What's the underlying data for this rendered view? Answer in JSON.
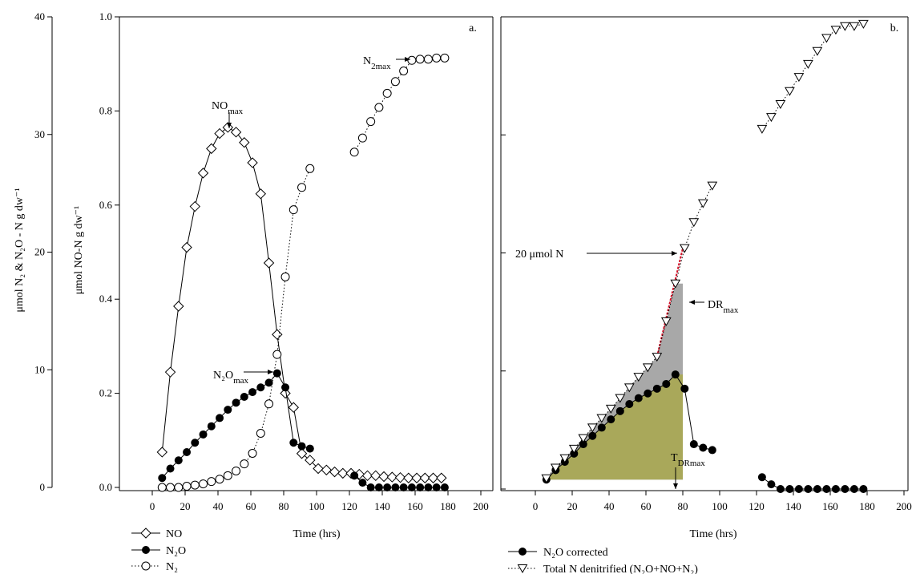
{
  "chart_data": [
    {
      "type": "line",
      "panel_label": "a.",
      "xlabel": "Time (hrs)",
      "xlim": [
        -10,
        200
      ],
      "x_ticks": [
        "0",
        "20",
        "40",
        "60",
        "80",
        "100",
        "120",
        "140",
        "160",
        "180",
        "200"
      ],
      "ylabel_left": "μmol N₂ & N₂O - N g dw⁻¹",
      "ylabel_right": "μmol NO-N g dw⁻¹",
      "ylim_left": [
        0,
        40
      ],
      "ylim_right": [
        0,
        1.0
      ],
      "y_ticks_left": [
        "0",
        "10",
        "20",
        "30",
        "40"
      ],
      "y_ticks_right": [
        "0.0",
        "0.2",
        "0.4",
        "0.6",
        "0.8",
        "1.0"
      ],
      "legend_position": "bottom-left",
      "series": [
        {
          "name": "NO",
          "axis": "right",
          "marker": "diamond",
          "line": "solid",
          "x": [
            6,
            11,
            16,
            21,
            26,
            31,
            36,
            41,
            46,
            51,
            56,
            61,
            66,
            71,
            76,
            81,
            86,
            91,
            96,
            101,
            106,
            111,
            116,
            121,
            126,
            131,
            136,
            141,
            146,
            151,
            156,
            161,
            166,
            171,
            176
          ],
          "y": [
            0.075,
            0.245,
            0.385,
            0.51,
            0.597,
            0.668,
            0.72,
            0.752,
            0.765,
            0.755,
            0.733,
            0.69,
            0.624,
            0.477,
            0.325,
            0.2,
            0.17,
            0.072,
            0.058,
            0.04,
            0.037,
            0.033,
            0.03,
            0.03,
            0.028,
            0.025,
            0.025,
            0.023,
            0.022,
            0.021,
            0.02,
            0.02,
            0.02,
            0.02,
            0.02
          ]
        },
        {
          "name": "N₂O",
          "axis": "left",
          "marker": "filled-circle",
          "line": "solid",
          "x": [
            6,
            11,
            16,
            21,
            26,
            31,
            36,
            41,
            46,
            51,
            56,
            61,
            66,
            71,
            76,
            81,
            86,
            91,
            96,
            123,
            128,
            133,
            138,
            143,
            148,
            153,
            158,
            163,
            168,
            173,
            178
          ],
          "y": [
            0.8,
            1.6,
            2.3,
            3.0,
            3.8,
            4.5,
            5.2,
            5.9,
            6.6,
            7.2,
            7.7,
            8.1,
            8.5,
            8.9,
            9.7,
            8.5,
            3.8,
            3.5,
            3.3,
            1.0,
            0.4,
            0.0,
            0.0,
            0.0,
            0.0,
            0.0,
            0.0,
            0.0,
            0.0,
            0.0,
            0.0
          ]
        },
        {
          "name": "N₂",
          "axis": "left",
          "marker": "open-circle",
          "line": "dotted",
          "x": [
            6,
            11,
            16,
            21,
            26,
            31,
            36,
            41,
            46,
            51,
            56,
            61,
            66,
            71,
            76,
            81,
            86,
            91,
            96,
            123,
            128,
            133,
            138,
            143,
            148,
            153,
            158,
            163,
            168,
            173,
            178
          ],
          "y": [
            0.0,
            0.0,
            0.0,
            0.1,
            0.2,
            0.3,
            0.5,
            0.7,
            1.0,
            1.4,
            2.0,
            2.9,
            4.6,
            7.1,
            11.3,
            17.9,
            23.6,
            25.5,
            27.1,
            28.5,
            29.7,
            31.1,
            32.3,
            33.5,
            34.5,
            35.4,
            36.3,
            36.4,
            36.4,
            36.5,
            36.5
          ]
        }
      ],
      "annotations": [
        {
          "text": "NO",
          "sub": "max"
        },
        {
          "text": "N",
          "sub": "2max"
        },
        {
          "text": "N₂O",
          "sub": "max"
        }
      ]
    },
    {
      "type": "line",
      "panel_label": "b.",
      "xlabel": "Time (hrs)",
      "xlim": [
        -10,
        200
      ],
      "x_ticks": [
        "0",
        "20",
        "40",
        "60",
        "80",
        "100",
        "120",
        "140",
        "160",
        "180",
        "200"
      ],
      "legend_position": "bottom",
      "series": [
        {
          "name": "N₂O corrected",
          "marker": "filled-circle",
          "line": "solid",
          "x": [
            6,
            11,
            16,
            21,
            26,
            31,
            36,
            41,
            46,
            51,
            56,
            61,
            66,
            71,
            76,
            81,
            86,
            91,
            96,
            123,
            128,
            133,
            138,
            143,
            148,
            153,
            158,
            163,
            168,
            173,
            178
          ],
          "y": [
            0.8,
            1.6,
            2.3,
            3.0,
            3.8,
            4.5,
            5.2,
            5.9,
            6.6,
            7.2,
            7.7,
            8.1,
            8.5,
            8.9,
            9.7,
            8.5,
            3.8,
            3.5,
            3.3,
            1.0,
            0.4,
            0.0,
            0.0,
            0.0,
            0.0,
            0.0,
            0.0,
            0.0,
            0.0,
            0.0,
            0.0
          ]
        },
        {
          "name": "Total N denitrified (N₂O+NO+N₂)",
          "marker": "open-triangle-down",
          "line": "dotted",
          "x": [
            6,
            11,
            16,
            21,
            26,
            31,
            36,
            41,
            46,
            51,
            56,
            61,
            66,
            71,
            76,
            81,
            86,
            91,
            96,
            123,
            128,
            133,
            138,
            143,
            148,
            153,
            158,
            163,
            168,
            173,
            178
          ],
          "y": [
            0.9,
            1.8,
            2.6,
            3.4,
            4.3,
            5.2,
            6.0,
            6.8,
            7.7,
            8.6,
            9.5,
            10.3,
            11.2,
            14.2,
            17.4,
            20.4,
            22.6,
            24.2,
            25.7,
            30.5,
            31.5,
            32.6,
            33.7,
            34.9,
            36.0,
            37.1,
            38.2,
            38.9,
            39.2,
            39.2,
            39.4
          ]
        }
      ],
      "annotations": [
        {
          "text": "20 μmol N"
        },
        {
          "text": "DR",
          "sub": "max"
        },
        {
          "text": "T",
          "sub": "DRmax"
        }
      ],
      "colors": {
        "grey_fill": "#a8a8a8",
        "olive_fill": "#a9a85a",
        "rate_line": "#d2142a"
      }
    }
  ]
}
